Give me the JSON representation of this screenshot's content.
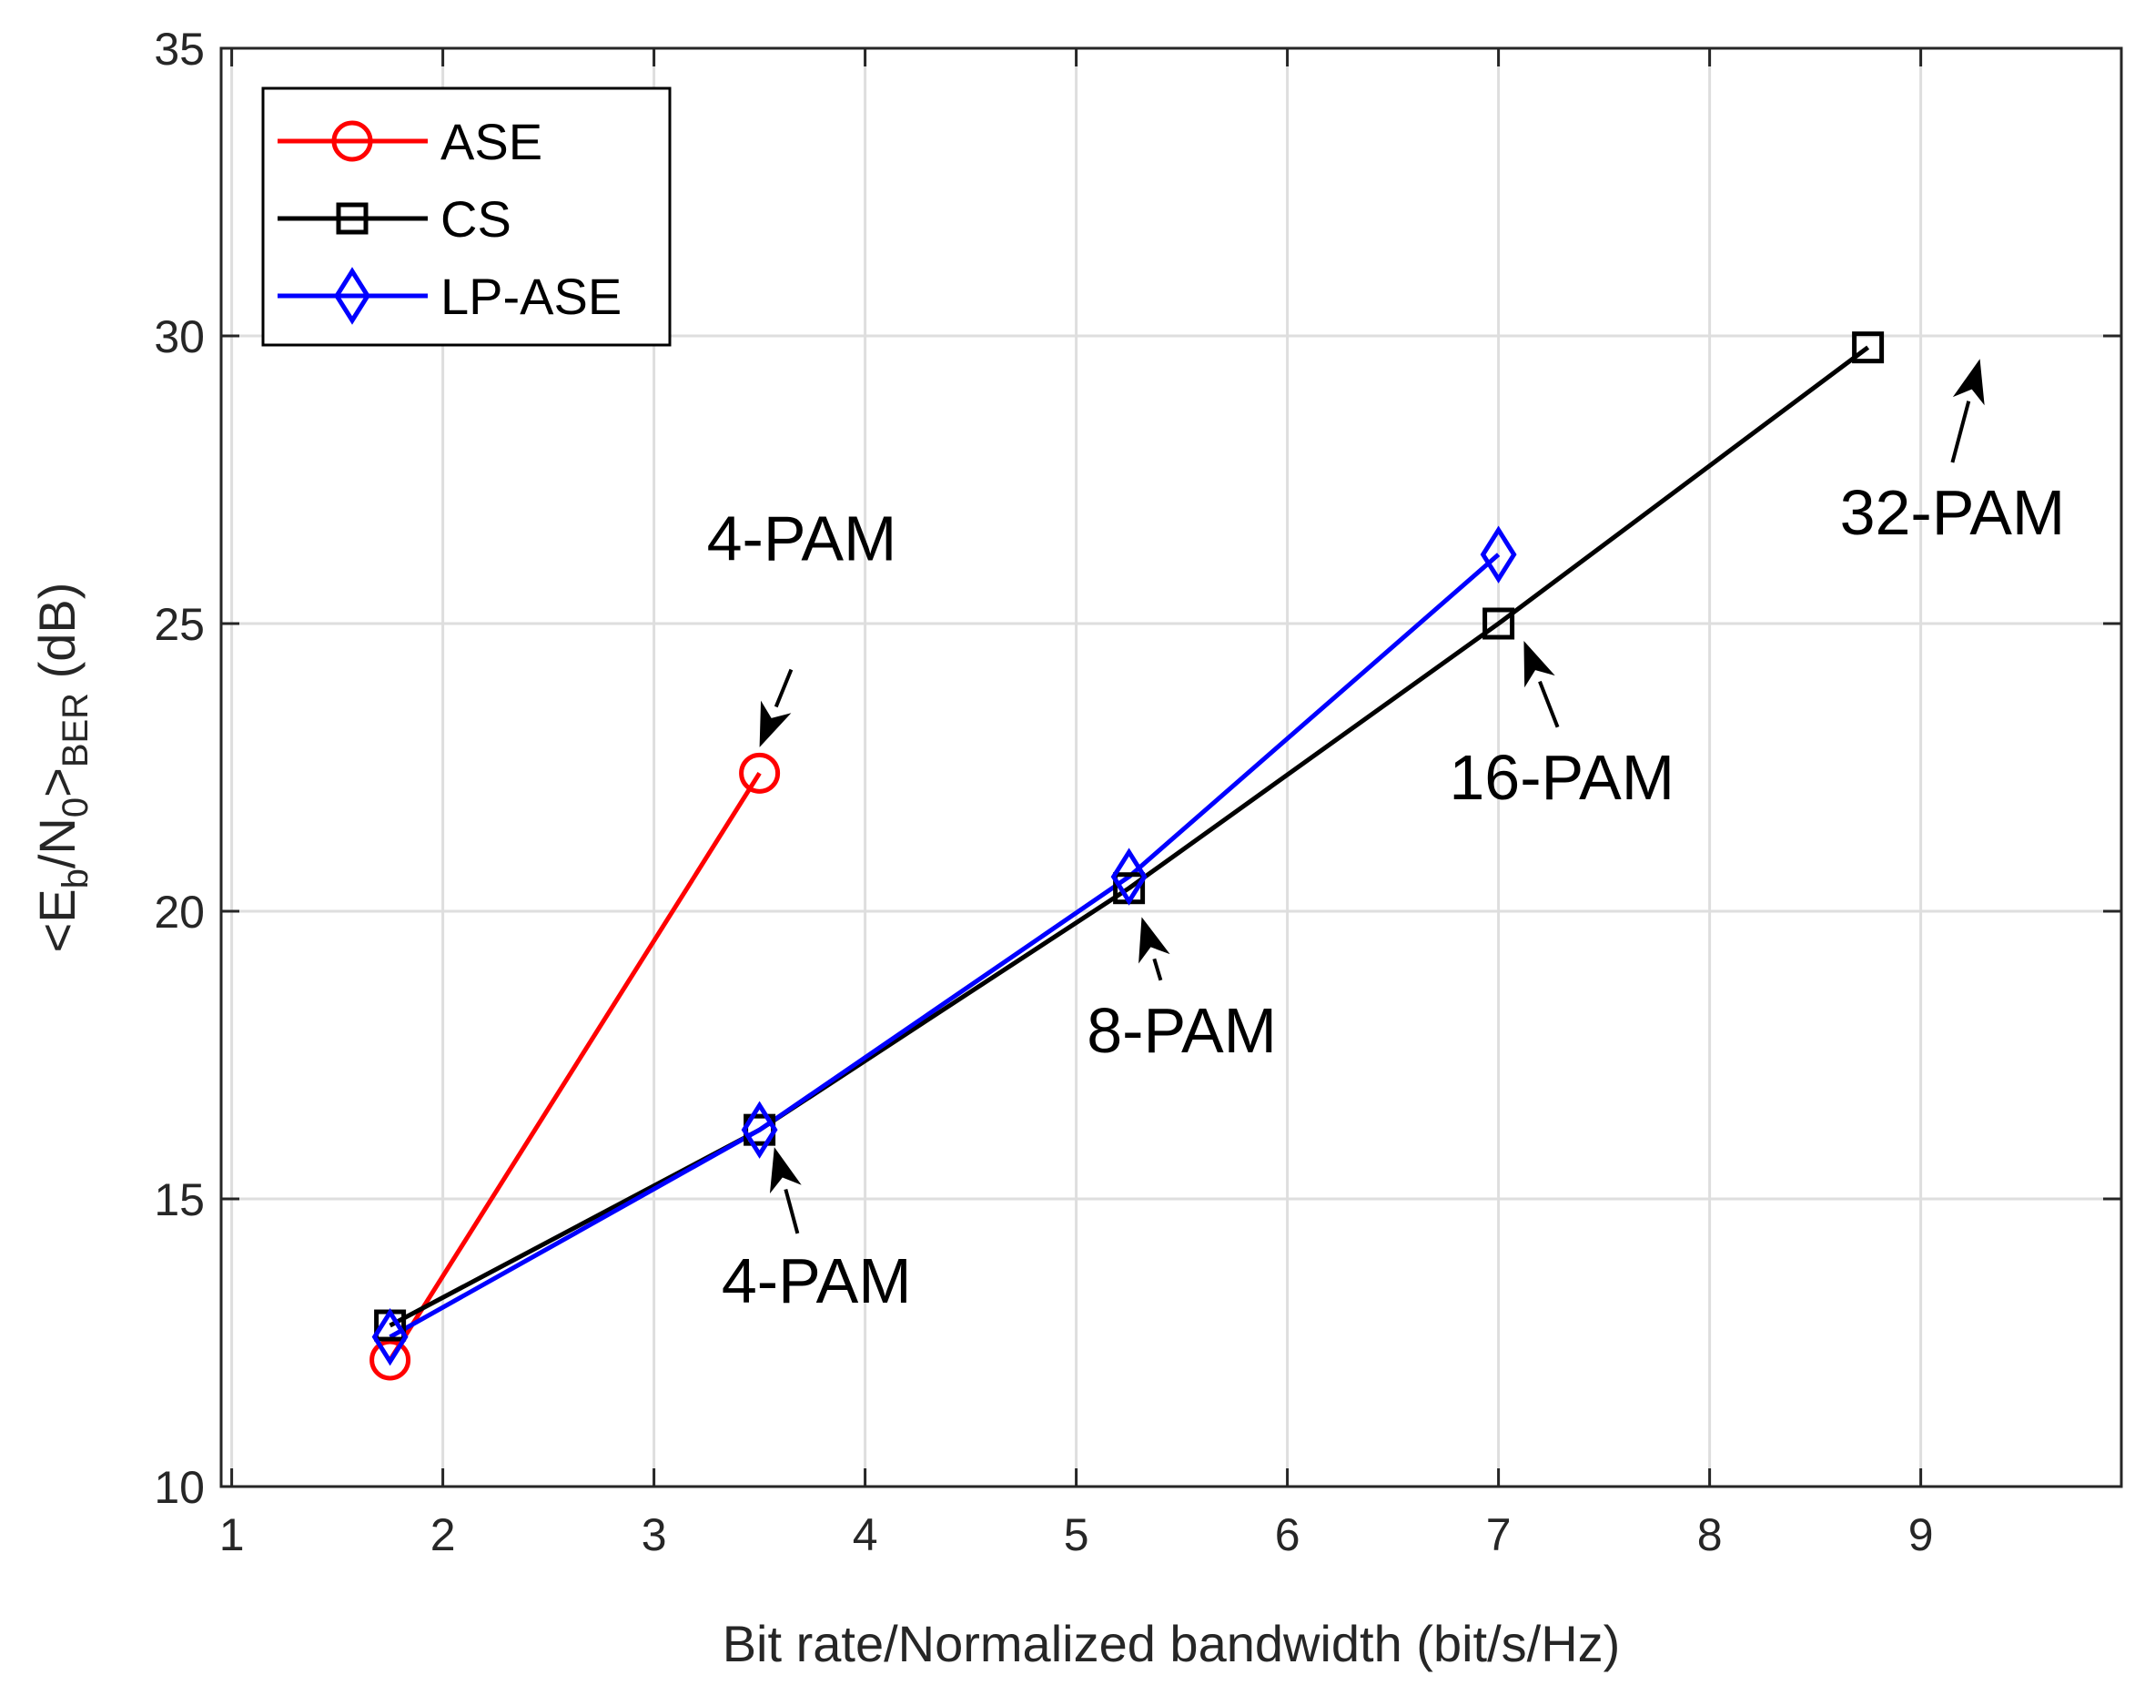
{
  "chart_data": {
    "type": "line",
    "xlabel": "Bit rate/Normalized bandwidth (bit/s/Hz)",
    "ylabel": {
      "open": "<E",
      "sub1": "b",
      "mid": "/N",
      "sub2": "0",
      "close": ">",
      "sub3": "BER",
      "unit": " (dB)"
    },
    "xlim": [
      0.95,
      9.95
    ],
    "ylim": [
      10,
      35
    ],
    "xticks": [
      1,
      2,
      3,
      4,
      5,
      6,
      7,
      8,
      9
    ],
    "yticks": [
      10,
      15,
      20,
      25,
      30,
      35
    ],
    "grid": true,
    "legend_location": "top-left",
    "series": [
      {
        "name": "ASE",
        "color": "#ff0000",
        "marker": "circle",
        "x": [
          1.75,
          3.5
        ],
        "y": [
          12.2,
          22.4
        ]
      },
      {
        "name": "CS",
        "color": "#000000",
        "marker": "square",
        "x": [
          1.75,
          3.5,
          5.25,
          7.0,
          8.75
        ],
        "y": [
          12.8,
          16.2,
          20.4,
          25.0,
          29.8
        ]
      },
      {
        "name": "LP-ASE",
        "color": "#0000ff",
        "marker": "diamond",
        "x": [
          1.75,
          3.5,
          5.25,
          7.0
        ],
        "y": [
          12.6,
          16.2,
          20.6,
          26.2
        ]
      }
    ],
    "annotations": [
      {
        "text": "4-PAM",
        "label_at": [
          3.7,
          26.1
        ],
        "arrow_from": [
          3.65,
          24.2
        ],
        "arrow_to": [
          3.5,
          22.85
        ]
      },
      {
        "text": "4-PAM",
        "label_at": [
          3.77,
          13.2
        ],
        "arrow_from": [
          3.68,
          14.4
        ],
        "arrow_to": [
          3.57,
          15.9
        ]
      },
      {
        "text": "8-PAM",
        "label_at": [
          5.5,
          17.55
        ],
        "arrow_from": [
          5.4,
          18.8
        ],
        "arrow_to": [
          5.31,
          19.9
        ]
      },
      {
        "text": "16-PAM",
        "label_at": [
          7.3,
          21.95
        ],
        "arrow_from": [
          7.28,
          23.2
        ],
        "arrow_to": [
          7.12,
          24.7
        ]
      },
      {
        "text": "32-PAM",
        "label_at": [
          9.15,
          26.55
        ],
        "arrow_from": [
          9.15,
          27.8
        ],
        "arrow_to": [
          9.28,
          29.6
        ]
      }
    ]
  }
}
